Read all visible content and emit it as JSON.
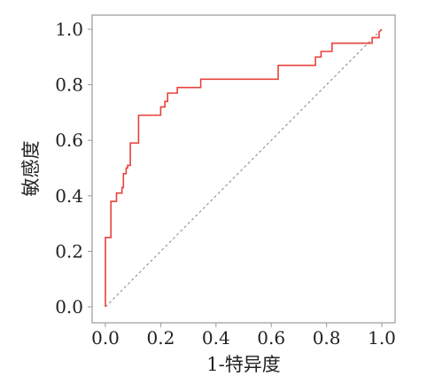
{
  "chart_data": {
    "type": "line",
    "title": "",
    "xlabel": "1-特异度",
    "ylabel": "敏感度",
    "xlim": [
      0,
      1.0
    ],
    "ylim": [
      0,
      1.0
    ],
    "x_ticks": [
      "0.0",
      "0.2",
      "0.4",
      "0.6",
      "0.8",
      "1.0"
    ],
    "y_ticks": [
      "0.0",
      "0.2",
      "0.4",
      "0.6",
      "0.8",
      "1.0"
    ],
    "grid": false,
    "legend": "none",
    "series": [
      {
        "color": "#e8413c",
        "style": "step",
        "x": [
          0.0,
          0.0,
          0.02,
          0.02,
          0.04,
          0.04,
          0.06,
          0.06,
          0.065,
          0.065,
          0.075,
          0.075,
          0.08,
          0.08,
          0.09,
          0.09,
          0.12,
          0.12,
          0.2,
          0.2,
          0.215,
          0.215,
          0.225,
          0.225,
          0.26,
          0.26,
          0.345,
          0.345,
          0.625,
          0.625,
          0.76,
          0.76,
          0.78,
          0.78,
          0.82,
          0.82,
          0.965,
          0.965,
          0.99,
          0.99,
          1.0
        ],
        "y": [
          0.0,
          0.25,
          0.25,
          0.38,
          0.38,
          0.41,
          0.41,
          0.43,
          0.43,
          0.48,
          0.48,
          0.5,
          0.5,
          0.51,
          0.51,
          0.59,
          0.59,
          0.69,
          0.69,
          0.72,
          0.72,
          0.74,
          0.74,
          0.77,
          0.77,
          0.79,
          0.79,
          0.82,
          0.82,
          0.87,
          0.87,
          0.9,
          0.9,
          0.92,
          0.92,
          0.95,
          0.95,
          0.97,
          0.97,
          0.99,
          1.0
        ]
      },
      {
        "color": "#888888",
        "style": "dashed",
        "x": [
          0,
          1
        ],
        "y": [
          0,
          1
        ]
      }
    ]
  }
}
